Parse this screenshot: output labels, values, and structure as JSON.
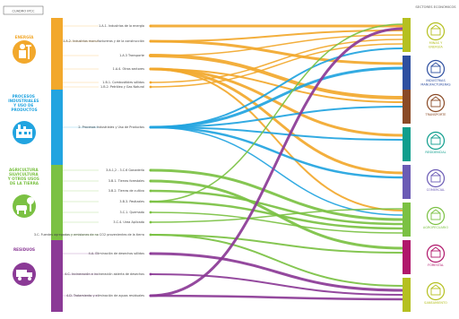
{
  "header": {
    "left_tag": "CUADRO IPCC",
    "right_tag": "SECTORES ECONÓMICOS"
  },
  "colors": {
    "energia": "#F2A82C",
    "procesos": "#22A4E0",
    "agricultura": "#7BC143",
    "residuos": "#8B3A96",
    "purple_dark": "#7A2E8A",
    "magenta": "#B0176B",
    "brown": "#8A4A26",
    "teal": "#0F9E8D",
    "navy": "#2E4FA0",
    "violet": "#6B5BB5",
    "olive": "#B5C020"
  },
  "left_categories": [
    {
      "key": "energia",
      "label": "ENERGÍA",
      "icon": "energy-worker-icon"
    },
    {
      "key": "procesos",
      "label": "PROCESOS INDUSTRIALES Y USO DE PRODUCTOS",
      "icon": "factory-icon"
    },
    {
      "key": "agricultura",
      "label": "AGRICULTURA SILVICULTURA Y OTROS USOS DE LA TIERRA",
      "icon": "cow-tree-icon"
    },
    {
      "key": "residuos",
      "label": "RESIDUOS",
      "icon": "waste-truck-icon"
    }
  ],
  "sources": [
    {
      "label": "1.A.1. Industrias de la energía",
      "cat": "energia"
    },
    {
      "label": "1.A.2. Industrias manufactureras y de la construcción",
      "cat": "energia"
    },
    {
      "label": "1.A.3 Transporte",
      "cat": "energia"
    },
    {
      "label": "1.A.4. Otros sectores",
      "cat": "energia"
    },
    {
      "label": "1.B.1. Combustibles sólidos",
      "cat": "energia"
    },
    {
      "label": "1.B.2. Petróleo y Gas Natural",
      "cat": "energia"
    },
    {
      "label": "2. Procesos Industriales y Uso de Productos",
      "cat": "procesos"
    },
    {
      "label": "3.A.1,2 - 3.C.6 Ganadería",
      "cat": "agricultura"
    },
    {
      "label": "3.B.1. Tierras forestales",
      "cat": "agricultura"
    },
    {
      "label": "3.B.2. Tierras de cultivo",
      "cat": "agricultura"
    },
    {
      "label": "3.B.3. Pastizales",
      "cat": "agricultura"
    },
    {
      "label": "3.C.1. Quemado",
      "cat": "agricultura"
    },
    {
      "label": "3.C.4. Urea Aplicada",
      "cat": "agricultura"
    },
    {
      "label": "3.C. Fuentes agregadas y emisiones de no CO2 provenientes de la tierra",
      "cat": "agricultura"
    },
    {
      "label": "4.A. Eliminación de desechos sólidos",
      "cat": "residuos"
    },
    {
      "label": "4.C. Incineración e incineración abierta de desechos",
      "cat": "residuos"
    },
    {
      "label": "4.D. Tratamiento y eliminación de aguas residuales",
      "cat": "residuos"
    }
  ],
  "sectors": [
    {
      "label": "MINAS Y ENERGÍA",
      "icon": "mining-icon",
      "color": "#B5C020"
    },
    {
      "label": "INDUSTRIAS MANUFACTURERAS",
      "icon": "manufacturing-icon",
      "color": "#2E4FA0"
    },
    {
      "label": "TRANSPORTE",
      "icon": "transport-icon",
      "color": "#8A4A26"
    },
    {
      "label": "RESIDENCIAL",
      "icon": "house-icon",
      "color": "#0F9E8D"
    },
    {
      "label": "COMERCIAL",
      "icon": "building-icon",
      "color": "#6B5BB5"
    },
    {
      "label": "AGROPECUARIO",
      "icon": "farm-icon",
      "color": "#7BC143"
    },
    {
      "label": "FORESTAL",
      "icon": "forest-icon",
      "color": "#B0176B"
    },
    {
      "label": "SANEAMIENTO",
      "icon": "sanitation-icon",
      "color": "#B5C020"
    }
  ]
}
